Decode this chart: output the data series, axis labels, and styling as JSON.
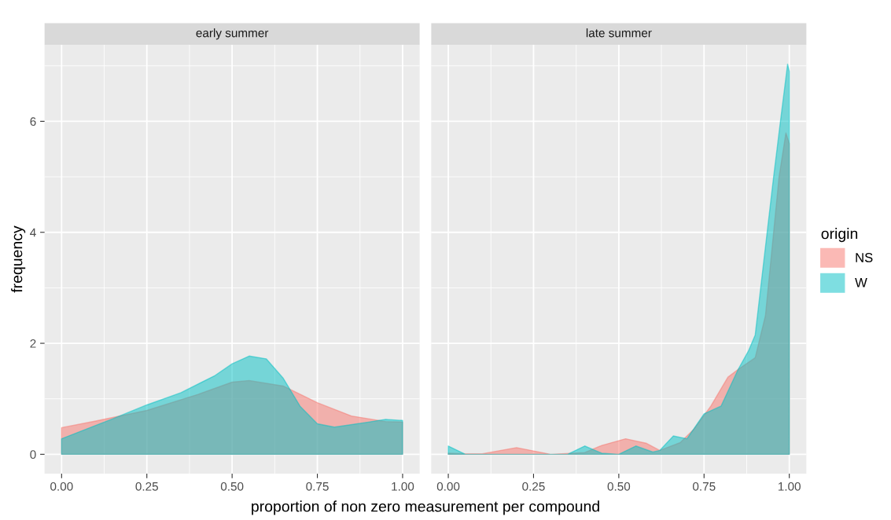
{
  "chart_data": [
    {
      "type": "area",
      "title": "early summer",
      "xlabel": "proportion of non zero measurement per compound",
      "ylabel": "frequency",
      "xlim": [
        -0.05,
        1.05
      ],
      "ylim": [
        -0.35,
        7.38
      ],
      "xticks": [
        {
          "value": 0,
          "label": "0.00"
        },
        {
          "value": 0.25,
          "label": "0.25"
        },
        {
          "value": 0.5,
          "label": "0.50"
        },
        {
          "value": 0.75,
          "label": "0.75"
        },
        {
          "value": 1,
          "label": "1.00"
        }
      ],
      "yticks": [
        0,
        2,
        4,
        6
      ],
      "grid": true,
      "legend": "right",
      "legend_title": "origin",
      "series": [
        {
          "name": "NS",
          "color": "#f8766d",
          "x": [
            0,
            0.1,
            0.25,
            0.4,
            0.5,
            0.55,
            0.65,
            0.75,
            0.85,
            0.95,
            1.0
          ],
          "values": [
            0.48,
            0.6,
            0.79,
            1.08,
            1.3,
            1.33,
            1.23,
            0.93,
            0.69,
            0.59,
            0.58
          ]
        },
        {
          "name": "W",
          "color": "#00bfc4",
          "x": [
            0,
            0.1,
            0.15,
            0.25,
            0.35,
            0.45,
            0.5,
            0.55,
            0.6,
            0.65,
            0.7,
            0.75,
            0.8,
            0.9,
            0.95,
            1.0
          ],
          "values": [
            0.28,
            0.52,
            0.64,
            0.89,
            1.11,
            1.42,
            1.63,
            1.77,
            1.72,
            1.37,
            0.86,
            0.55,
            0.49,
            0.58,
            0.63,
            0.61
          ]
        }
      ]
    },
    {
      "type": "area",
      "title": "late summer",
      "xlim": [
        -0.05,
        1.05
      ],
      "ylim": [
        -0.35,
        7.38
      ],
      "tick_labels": "x",
      "xticks": [
        {
          "value": 0,
          "label": "0.00"
        },
        {
          "value": 0.25,
          "label": "0.25"
        },
        {
          "value": 0.5,
          "label": "0.50"
        },
        {
          "value": 0.75,
          "label": "0.75"
        },
        {
          "value": 1,
          "label": "1.00"
        }
      ],
      "yticks": [
        0,
        2,
        4,
        6
      ],
      "grid": true,
      "legend": "right",
      "series": [
        {
          "name": "NS",
          "color": "#f8766d",
          "x": [
            0,
            0.05,
            0.1,
            0.2,
            0.3,
            0.4,
            0.45,
            0.52,
            0.58,
            0.62,
            0.68,
            0.72,
            0.77,
            0.82,
            0.85,
            0.9,
            0.93,
            0.954,
            0.97,
            0.99,
            1.0
          ],
          "values": [
            0.02,
            0.01,
            0.01,
            0.12,
            0.0,
            0.03,
            0.16,
            0.28,
            0.2,
            0.07,
            0.21,
            0.45,
            0.87,
            1.39,
            1.53,
            1.74,
            2.5,
            4.0,
            5.0,
            5.79,
            5.6
          ]
        },
        {
          "name": "W",
          "color": "#00bfc4",
          "x": [
            0,
            0.05,
            0.1,
            0.35,
            0.4,
            0.45,
            0.5,
            0.55,
            0.6,
            0.62,
            0.66,
            0.7,
            0.75,
            0.8,
            0.85,
            0.88,
            0.9,
            0.935,
            0.954,
            0.974,
            0.995,
            1.0
          ],
          "values": [
            0.15,
            0.0,
            0.0,
            0.0,
            0.15,
            0.02,
            0.0,
            0.15,
            0.04,
            0.07,
            0.33,
            0.28,
            0.73,
            0.87,
            1.53,
            1.86,
            2.15,
            4.0,
            5.0,
            6.0,
            7.03,
            6.9
          ]
        }
      ]
    }
  ]
}
